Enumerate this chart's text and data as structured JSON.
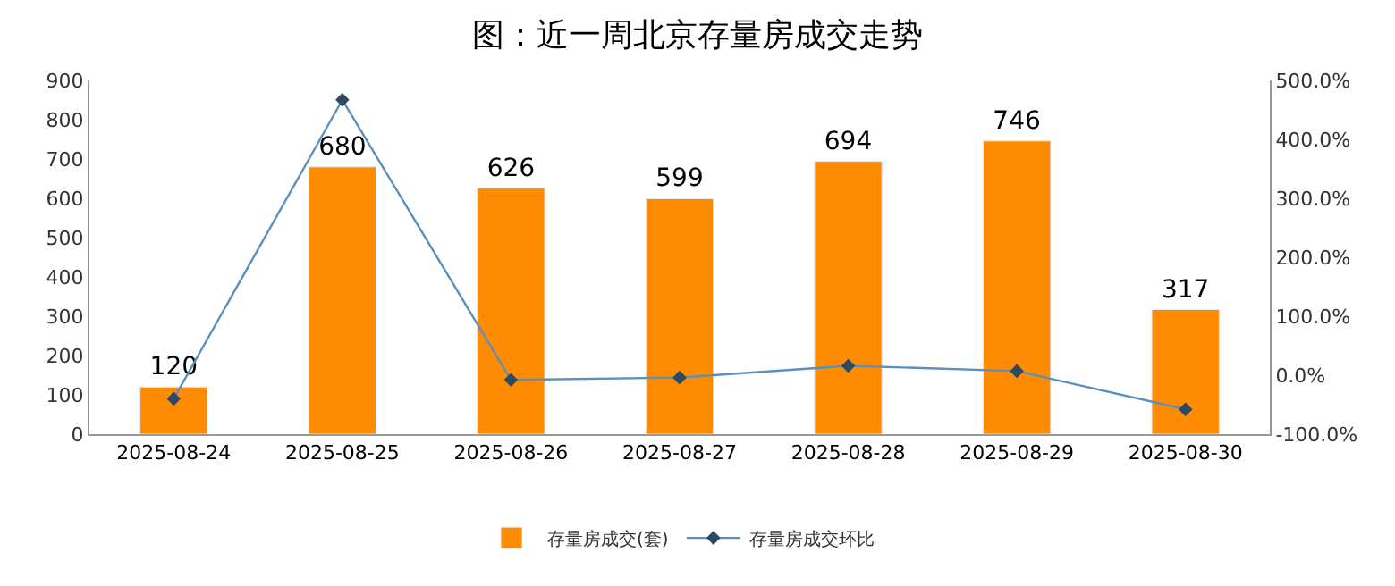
{
  "chart_data": {
    "type": "bar",
    "title": "图：近一周北京存量房成交走势",
    "categories": [
      "2025-08-24",
      "2025-08-25",
      "2025-08-26",
      "2025-08-27",
      "2025-08-28",
      "2025-08-29",
      "2025-08-30"
    ],
    "series": [
      {
        "name": "存量房成交(套)",
        "color": "#ff8c00",
        "values": [
          120,
          680,
          626,
          599,
          694,
          746,
          317
        ],
        "value_labels": [
          "120",
          "680",
          "626",
          "599",
          "694",
          "746",
          "317"
        ]
      },
      {
        "name": "存量房成交环比",
        "type": "line",
        "axis": "y2",
        "color": "#5b8fbf",
        "marker": "diamond",
        "values": [
          -40,
          467,
          -8,
          -4,
          16,
          7,
          -58
        ]
      }
    ],
    "ylim": [
      0,
      900
    ],
    "yticks": [
      0,
      100,
      200,
      300,
      400,
      500,
      600,
      700,
      800,
      900
    ],
    "y2lim": [
      -100,
      500
    ],
    "y2ticks": [
      {
        "value": -100,
        "label": "-100.0%"
      },
      {
        "value": 0,
        "label": "0.0%"
      },
      {
        "value": 100,
        "label": "100.0%"
      },
      {
        "value": 200,
        "label": "200.0%"
      },
      {
        "value": 300,
        "label": "300.0%"
      },
      {
        "value": 400,
        "label": "400.0%"
      },
      {
        "value": 500,
        "label": "500.0%"
      }
    ],
    "legend": "bottom"
  }
}
